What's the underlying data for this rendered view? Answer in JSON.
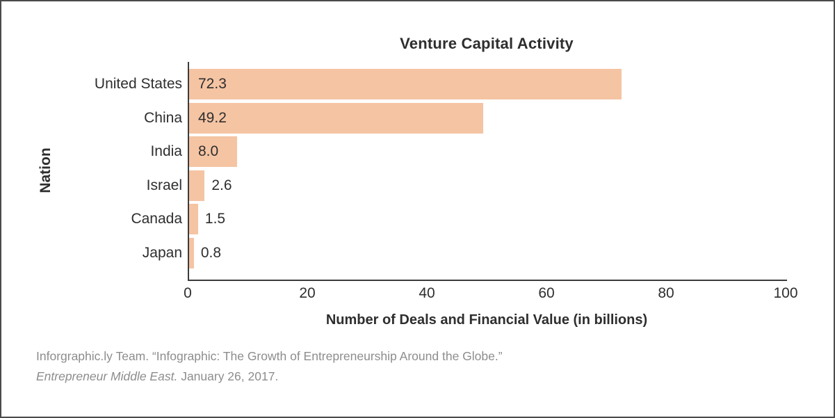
{
  "chart_data": {
    "type": "bar",
    "orientation": "horizontal",
    "title": "Venture Capital Activity",
    "xlabel": "Number of Deals and Financial Value (in billions)",
    "ylabel": "Nation",
    "categories": [
      "United States",
      "China",
      "India",
      "Israel",
      "Canada",
      "Japan"
    ],
    "values": [
      72.3,
      49.2,
      8.0,
      2.6,
      1.5,
      0.8
    ],
    "value_labels": [
      "72.3",
      "49.2",
      "8.0",
      "2.6",
      "1.5",
      "0.8"
    ],
    "xlim": [
      0,
      100
    ],
    "xticks": [
      0,
      20,
      40,
      60,
      80,
      100
    ],
    "grid": false,
    "legend": "none",
    "bar_color": "#F5C4A3"
  },
  "colors": {
    "bar": "#F5C4A3",
    "axis": "#3B3B3B",
    "text": "#2E2E2E",
    "citation": "#8D8D8D",
    "border": "#4A4A4A"
  },
  "citation": {
    "line1": "Inforgraphic.ly Team. “Infographic: The Growth of Entrepreneurship Around the Globe.”",
    "source_italic": "Entrepreneur Middle East.",
    "date": "January 26, 2017."
  }
}
